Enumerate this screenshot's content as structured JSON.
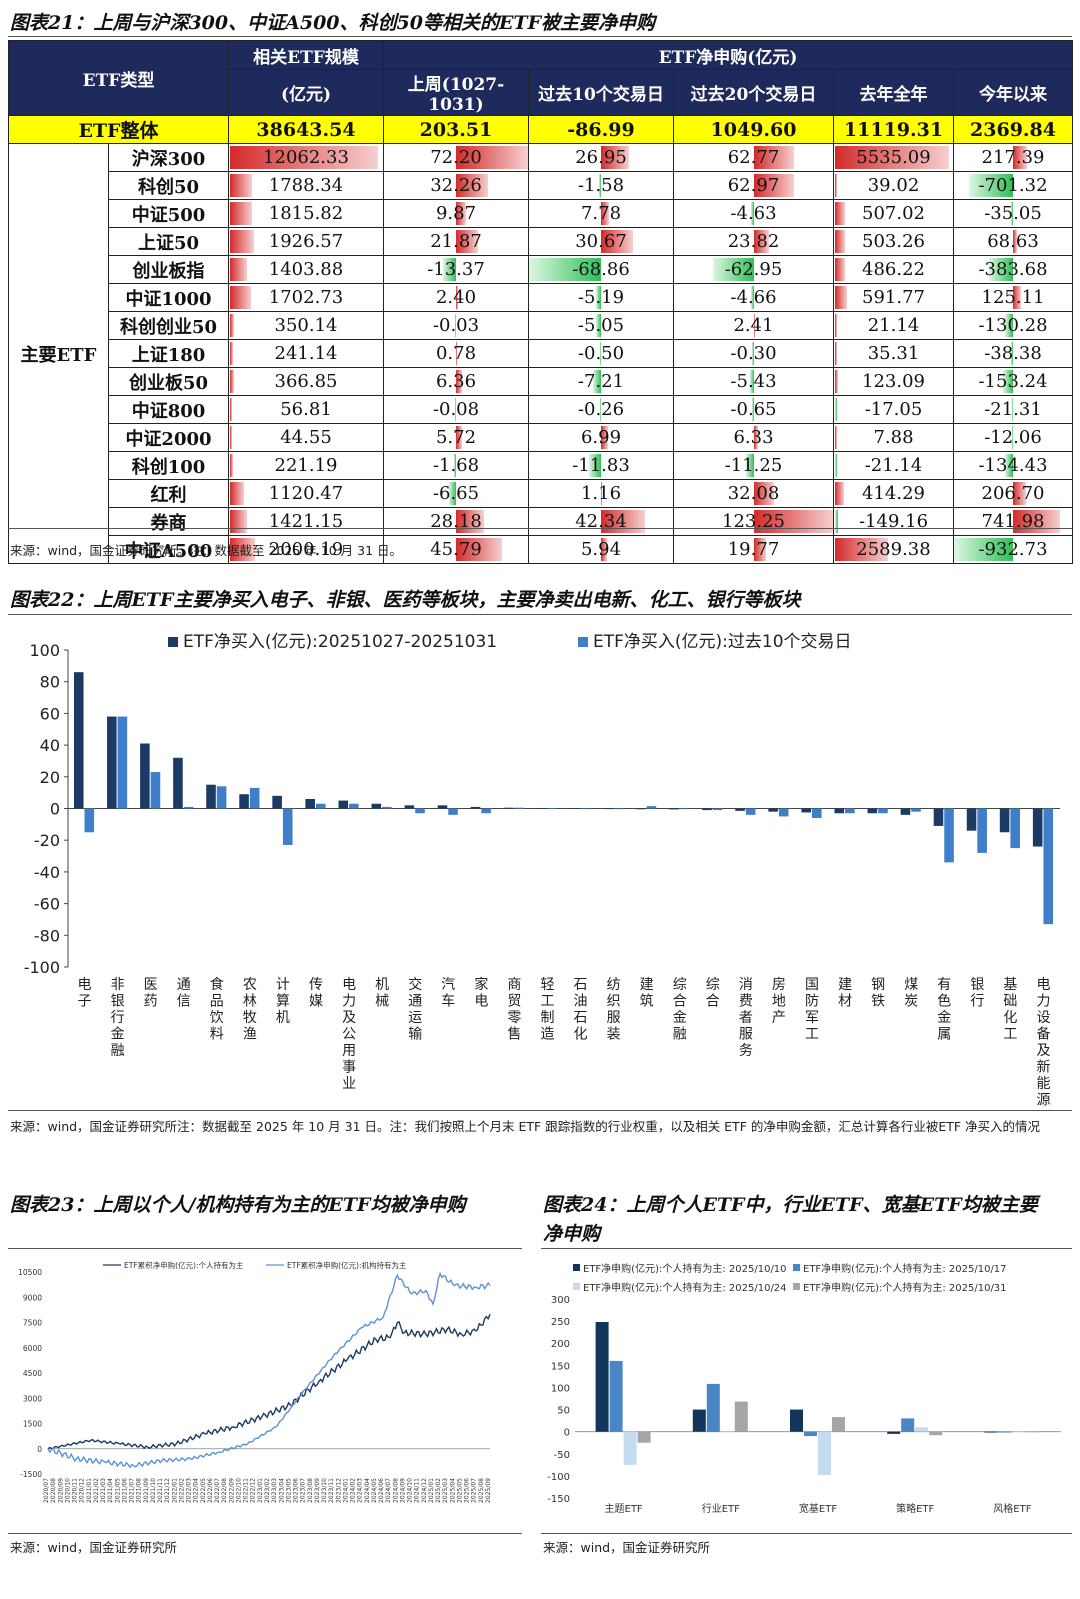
{
  "fig21": {
    "title": "图表21：上周与沪深300、中证A500、科创50等相关的ETF被主要净申购",
    "headers": {
      "type": "ETF类型",
      "scale_line1": "相关ETF规模",
      "scale_line2": "(亿元)",
      "net_sub": "ETF净申购(亿元)",
      "cols": [
        "上周(1027-1031)",
        "过去10个交易日",
        "过去20个交易日",
        "去年全年",
        "今年以来"
      ]
    },
    "total": {
      "label": "ETF整体",
      "values": [
        "38643.54",
        "203.51",
        "-86.99",
        "1049.60",
        "11119.31",
        "2369.84"
      ]
    },
    "group_label": "主要ETF",
    "rows": [
      {
        "name": "沪深300",
        "values": [
          "12062.33",
          "72.20",
          "26.95",
          "62.77",
          "5535.09",
          "217.39"
        ]
      },
      {
        "name": "科创50",
        "values": [
          "1788.34",
          "32.26",
          "-1.58",
          "62.97",
          "39.02",
          "-701.32"
        ]
      },
      {
        "name": "中证500",
        "values": [
          "1815.82",
          "9.87",
          "7.78",
          "-4.63",
          "507.02",
          "-35.05"
        ]
      },
      {
        "name": "上证50",
        "values": [
          "1926.57",
          "21.87",
          "30.67",
          "23.82",
          "503.26",
          "68.63"
        ]
      },
      {
        "name": "创业板指",
        "values": [
          "1403.88",
          "-13.37",
          "-68.86",
          "-62.95",
          "486.22",
          "-383.68"
        ]
      },
      {
        "name": "中证1000",
        "values": [
          "1702.73",
          "2.40",
          "-5.19",
          "-4.66",
          "591.77",
          "125.11"
        ]
      },
      {
        "name": "科创创业50",
        "values": [
          "350.14",
          "-0.03",
          "-5.05",
          "2.41",
          "21.14",
          "-130.28"
        ]
      },
      {
        "name": "上证180",
        "values": [
          "241.14",
          "0.78",
          "-0.50",
          "-0.30",
          "35.31",
          "-38.38"
        ]
      },
      {
        "name": "创业板50",
        "values": [
          "366.85",
          "6.36",
          "-7.21",
          "-5.43",
          "123.09",
          "-153.24"
        ]
      },
      {
        "name": "中证800",
        "values": [
          "56.81",
          "-0.08",
          "-0.26",
          "-0.65",
          "-17.05",
          "-21.31"
        ]
      },
      {
        "name": "中证2000",
        "values": [
          "44.55",
          "5.72",
          "6.99",
          "6.33",
          "7.88",
          "-12.06"
        ]
      },
      {
        "name": "科创100",
        "values": [
          "221.19",
          "-1.68",
          "-11.83",
          "-11.25",
          "-21.14",
          "-134.43"
        ]
      },
      {
        "name": "红利",
        "values": [
          "1120.47",
          "-6.65",
          "1.16",
          "32.08",
          "414.29",
          "206.70"
        ]
      },
      {
        "name": "券商",
        "values": [
          "1421.15",
          "28.18",
          "42.34",
          "123.25",
          "-149.16",
          "741.98"
        ]
      },
      {
        "name": "中证A500",
        "values": [
          "2000.19",
          "45.79",
          "5.94",
          "19.77",
          "2589.38",
          "-932.73"
        ]
      }
    ],
    "source": "来源：wind，国金证券研究所。注：数据截至 2025 年 10 月 31 日。"
  },
  "fig22": {
    "title": "图表22：上周ETF主要净买入电子、非银、医药等板块，主要净卖出电新、化工、银行等板块",
    "source": "来源：wind，国金证券研究所注：数据截至 2025 年 10 月 31 日。注：我们按照上个月末 ETF 跟踪指数的行业权重，以及相关 ETF 的净申购金额，汇总计算各行业被ETF 净买入的情况"
  },
  "fig23": {
    "title": "图表23：上周以个人/机构持有为主的ETF均被净申购",
    "source": "来源：wind，国金证券研究所"
  },
  "fig24": {
    "title_line1": "图表24：上周个人ETF中，行业ETF、宽基ETF均被主要",
    "title_line2": "净申购",
    "source": "来源：wind，国金证券研究所"
  },
  "chart_data": [
    {
      "type": "bar",
      "categories": [
        "电子",
        "非银行金融",
        "医药",
        "通信",
        "食品饮料",
        "农林牧渔",
        "计算机",
        "传媒",
        "电力及公用事业",
        "机械",
        "交通运输",
        "汽车",
        "家电",
        "商贸零售",
        "轻工制造",
        "石油石化",
        "纺织服装",
        "建筑",
        "综合金融",
        "综合",
        "消费者服务",
        "房地产",
        "国防军工",
        "建材",
        "钢铁",
        "煤炭",
        "有色金属",
        "银行",
        "基础化工",
        "电力设备及新能源"
      ],
      "series": [
        {
          "name": "ETF净买入(亿元):20251027-20251031",
          "color": "#1b3a64",
          "values": [
            86,
            58,
            41,
            32,
            15,
            9,
            8,
            6,
            5,
            3,
            2,
            2,
            1,
            0.5,
            0.3,
            0.2,
            -0.3,
            -0.5,
            -0.6,
            -1,
            -1.5,
            -2,
            -2.5,
            -3,
            -3,
            -4,
            -11,
            -14,
            -15,
            -24
          ]
        },
        {
          "name": "ETF净买入(亿元):过去10个交易日",
          "color": "#3f7ec9",
          "values": [
            -15,
            58,
            23,
            1,
            14,
            13,
            -23,
            3,
            3,
            1,
            -3,
            -4,
            -3,
            0.5,
            0.3,
            -0.3,
            -0.3,
            1.5,
            -0.3,
            -1,
            -4,
            -5,
            -6,
            -3,
            -3,
            -2,
            -34,
            -28,
            -25,
            -73
          ]
        }
      ],
      "ylim": [
        -100,
        100
      ],
      "yticks": [
        100,
        80,
        60,
        40,
        20,
        0,
        -20,
        -40,
        -60,
        -80,
        -100
      ],
      "grid": false,
      "legend": "top"
    },
    {
      "type": "line",
      "x_ticks": [
        "2020/07",
        "2020/08",
        "2020/09",
        "2020/10",
        "2020/11",
        "2020/12",
        "2021/01",
        "2021/02",
        "2021/03",
        "2021/04",
        "2021/05",
        "2021/06",
        "2021/07",
        "2021/08",
        "2021/09",
        "2021/10",
        "2021/11",
        "2021/12",
        "2022/01",
        "2022/02",
        "2022/03",
        "2022/04",
        "2022/05",
        "2022/06",
        "2022/07",
        "2022/08",
        "2022/09",
        "2022/10",
        "2022/11",
        "2022/12",
        "2023/01",
        "2023/02",
        "2023/03",
        "2023/04",
        "2023/05",
        "2023/06",
        "2023/07",
        "2023/08",
        "2023/09",
        "2023/10",
        "2023/11",
        "2023/12",
        "2024/01",
        "2024/02",
        "2024/03",
        "2024/04",
        "2024/05",
        "2024/06",
        "2024/07",
        "2024/08",
        "2024/09",
        "2024/10",
        "2024/11",
        "2024/12",
        "2025/01",
        "2025/02",
        "2025/03",
        "2025/04",
        "2025/05",
        "2025/06",
        "2025/07",
        "2025/08",
        "2025/09"
      ],
      "yticks": [
        10500,
        9000,
        7500,
        6000,
        4500,
        3000,
        1500,
        0,
        -1500
      ],
      "ylim": [
        -1500,
        10500
      ],
      "series": [
        {
          "name": "ETF累积净申购(亿元):个人持有为主",
          "color": "#1b3a64",
          "anchors": [
            [
              0,
              0
            ],
            [
              6,
              500
            ],
            [
              10,
              300
            ],
            [
              14,
              100
            ],
            [
              18,
              300
            ],
            [
              22,
              900
            ],
            [
              26,
              1300
            ],
            [
              30,
              1900
            ],
            [
              34,
              2600
            ],
            [
              38,
              4000
            ],
            [
              42,
              5300
            ],
            [
              46,
              6500
            ],
            [
              48,
              6600
            ],
            [
              49,
              7500
            ],
            [
              50,
              6900
            ],
            [
              53,
              6800
            ],
            [
              56,
              7100
            ],
            [
              58,
              6800
            ],
            [
              60,
              7000
            ],
            [
              62,
              8000
            ]
          ]
        },
        {
          "name": "ETF累积净申购(亿元):机构持有为主",
          "color": "#5c92d4",
          "anchors": [
            [
              0,
              0
            ],
            [
              4,
              -600
            ],
            [
              8,
              -800
            ],
            [
              12,
              -1000
            ],
            [
              16,
              -700
            ],
            [
              20,
              -600
            ],
            [
              24,
              -200
            ],
            [
              28,
              300
            ],
            [
              32,
              1300
            ],
            [
              36,
              3500
            ],
            [
              40,
              5500
            ],
            [
              44,
              7200
            ],
            [
              47,
              7800
            ],
            [
              49,
              10300
            ],
            [
              51,
              9200
            ],
            [
              53,
              9400
            ],
            [
              54,
              8600
            ],
            [
              55,
              10400
            ],
            [
              57,
              9700
            ],
            [
              60,
              9600
            ],
            [
              62,
              9700
            ]
          ]
        }
      ],
      "legend": "top"
    },
    {
      "type": "bar",
      "categories": [
        "主题ETF",
        "行业ETF",
        "宽基ETF",
        "策略ETF",
        "风格ETF"
      ],
      "series": [
        {
          "name": "ETF净申购(亿元):个人持有为主: 2025/10/10",
          "color": "#12355c",
          "values": [
            248,
            50,
            50,
            -5,
            -2
          ]
        },
        {
          "name": "ETF净申购(亿元):个人持有为主: 2025/10/17",
          "color": "#4a86c5",
          "values": [
            160,
            108,
            -10,
            30,
            -2
          ]
        },
        {
          "name": "ETF净申购(亿元):个人持有为主: 2025/10/24",
          "color": "#c5dcf0",
          "values": [
            -75,
            0,
            -98,
            10,
            0
          ]
        },
        {
          "name": "ETF净申购(亿元):个人持有为主: 2025/10/31",
          "color": "#a6a6a6",
          "values": [
            -25,
            68,
            33,
            -8,
            0
          ]
        }
      ],
      "ylim": [
        -150,
        300
      ],
      "yticks": [
        300,
        250,
        200,
        150,
        100,
        50,
        0,
        -50,
        -100,
        -150
      ],
      "legend": "top"
    }
  ]
}
